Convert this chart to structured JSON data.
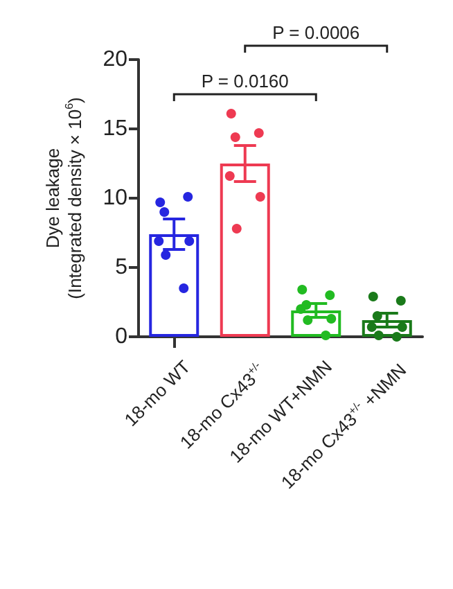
{
  "chart_data": {
    "type": "bar",
    "ylabel": "Dye leakage\n(Integrated density × 10$^{6}$)",
    "categories": [
      "18-mo WT",
      "18-mo Cx43$^{+/-}$",
      "18-mo WT+NMN",
      "18-mo Cx43$^{+/-}$ +NMN"
    ],
    "values": [
      7.4,
      12.5,
      1.9,
      1.2
    ],
    "errors": [
      1.1,
      1.3,
      0.5,
      0.5
    ],
    "colors": [
      "#2626e0",
      "#ee3a52",
      "#22bb22",
      "#1a7a1a"
    ],
    "series": [
      {
        "type": "scatter",
        "color": "#2626e0",
        "x": [
          "18-mo WT",
          "18-mo WT",
          "18-mo WT",
          "18-mo WT",
          "18-mo WT",
          "18-mo WT",
          "18-mo WT"
        ],
        "values": [
          9.7,
          10.1,
          9.0,
          6.9,
          6.9,
          5.9,
          3.5
        ]
      },
      {
        "type": "scatter",
        "color": "#ee3a52",
        "x": [
          "18-mo Cx43$^{+/-}$",
          "18-mo Cx43$^{+/-}$",
          "18-mo Cx43$^{+/-}$",
          "18-mo Cx43$^{+/-}$",
          "18-mo Cx43$^{+/-}$",
          "18-mo Cx43$^{+/-}$"
        ],
        "values": [
          16.1,
          14.7,
          14.4,
          11.6,
          10.1,
          7.8
        ]
      },
      {
        "type": "scatter",
        "color": "#22bb22",
        "x": [
          "18-mo WT+NMN",
          "18-mo WT+NMN",
          "18-mo WT+NMN",
          "18-mo WT+NMN",
          "18-mo WT+NMN",
          "18-mo WT+NMN",
          "18-mo WT+NMN"
        ],
        "values": [
          3.4,
          3.0,
          2.3,
          2.0,
          1.3,
          1.2,
          0.1
        ]
      },
      {
        "type": "scatter",
        "color": "#1a7a1a",
        "x": [
          "18-mo Cx43$^{+/-}$ +NMN",
          "18-mo Cx43$^{+/-}$ +NMN",
          "18-mo Cx43$^{+/-}$ +NMN",
          "18-mo Cx43$^{+/-}$ +NMN",
          "18-mo Cx43$^{+/-}$ +NMN",
          "18-mo Cx43$^{+/-}$ +NMN",
          "18-mo Cx43$^{+/-}$ +NMN"
        ],
        "values": [
          2.9,
          2.6,
          1.5,
          0.7,
          0.7,
          0.1,
          0.0
        ]
      }
    ],
    "annotations": [
      "P = 0.0160",
      "P = 0.0006"
    ],
    "ylim": [
      0,
      20
    ],
    "yticks": [
      0,
      5,
      10,
      15,
      20
    ],
    "marker": "circle",
    "grid": false
  }
}
